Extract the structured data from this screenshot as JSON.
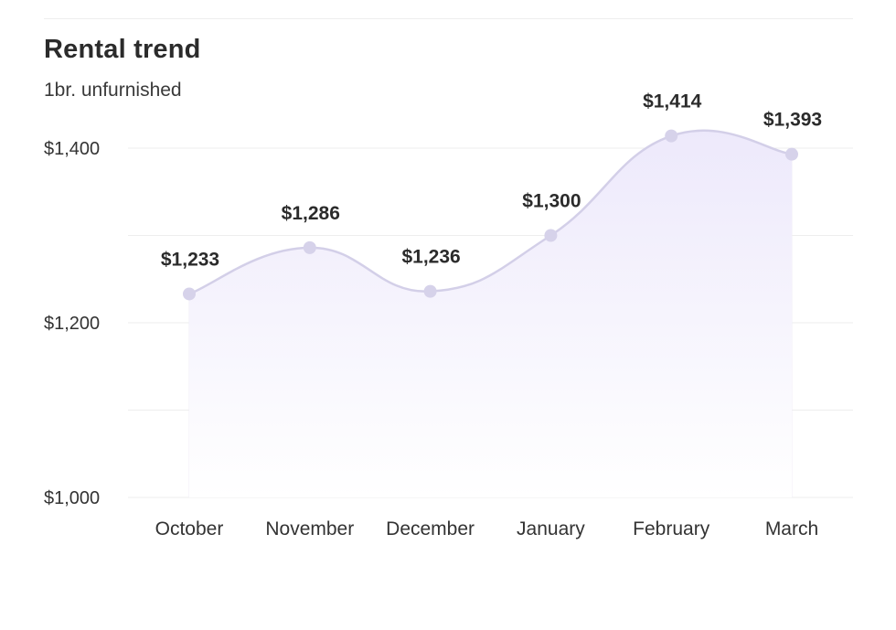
{
  "chart_data": {
    "type": "area",
    "title": "Rental trend",
    "subtitle": "1br. unfurnished",
    "categories": [
      "October",
      "November",
      "December",
      "January",
      "February",
      "March"
    ],
    "series": [
      {
        "values": [
          1233,
          1286,
          1236,
          1300,
          1414,
          1393
        ],
        "data_labels": [
          "$1,233",
          "$1,286",
          "$1,236",
          "$1,300",
          "$1,414",
          "$1,393"
        ]
      }
    ],
    "ylim": [
      1000,
      1450
    ],
    "yticks": [
      1000,
      1200,
      1400
    ],
    "ytick_labels": [
      "$1,000",
      "$1,200",
      "$1,400"
    ],
    "y_gridlines": [
      1000,
      1100,
      1200,
      1300,
      1400
    ],
    "grid": true,
    "xlabel": "",
    "ylabel": "",
    "colors": {
      "line": "#d3cfe8",
      "marker": "#d6d2ea",
      "fill_top": "#ede9fb",
      "fill_bottom": "#ffffff",
      "grid": "#eeeeee"
    }
  }
}
